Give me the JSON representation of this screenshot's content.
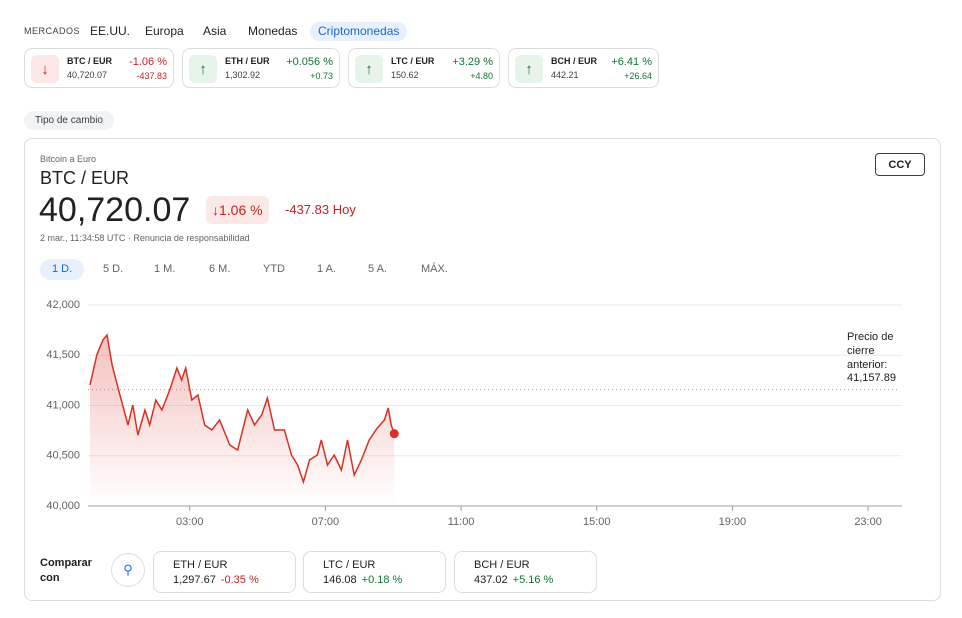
{
  "nav": {
    "label": "MERCADOS",
    "tabs": [
      "EE.UU.",
      "Europa",
      "Asia",
      "Monedas",
      "Criptomonedas"
    ],
    "active": 4
  },
  "tickers": [
    {
      "pair": "BTC / EUR",
      "price": "40,720.07",
      "change": "-1.06 %",
      "delta": "-437.83",
      "direction": "down"
    },
    {
      "pair": "ETH / EUR",
      "price": "1,302.92",
      "change": "+0.056 %",
      "delta": "+0.73",
      "direction": "up"
    },
    {
      "pair": "LTC / EUR",
      "price": "150.62",
      "change": "+3.29 %",
      "delta": "+4.80",
      "direction": "up"
    },
    {
      "pair": "BCH / EUR",
      "price": "442.21",
      "change": "+6.41 %",
      "delta": "+26.64",
      "direction": "up"
    }
  ],
  "chip": "Tipo de cambio",
  "card": {
    "subtitle": "Bitcoin a Euro",
    "title": "BTC / EUR",
    "price": "40,720.07",
    "change": "1.06 %",
    "delta": "-437.83 Hoy",
    "timestamp": "2 mar., 11:34:58 UTC · Renuncia de responsabilidad",
    "button": "CCY",
    "ranges": [
      "1 D.",
      "5 D.",
      "1 M.",
      "6 M.",
      "YTD",
      "1 A.",
      "5 A.",
      "MÁX."
    ],
    "active_range": 0
  },
  "chart_data": {
    "type": "line",
    "x": [
      0.06,
      0.26,
      0.44,
      0.56,
      0.71,
      0.94,
      1.18,
      1.32,
      1.47,
      1.68,
      1.82,
      2.0,
      2.18,
      2.41,
      2.62,
      2.76,
      2.88,
      3.06,
      3.24,
      3.44,
      3.65,
      3.88,
      4.18,
      4.41,
      4.71,
      4.91,
      5.12,
      5.29,
      5.5,
      5.79,
      6.0,
      6.18,
      6.35,
      6.53,
      6.76,
      6.88,
      7.06,
      7.26,
      7.47,
      7.65,
      7.85,
      8.06,
      8.29,
      8.53,
      8.74,
      8.85,
      8.94,
      9.03
    ],
    "series": [
      {
        "color": "#d93025",
        "values": [
          41204,
          41502,
          41652,
          41701,
          41403,
          41104,
          40806,
          41005,
          40706,
          40955,
          40806,
          41055,
          40955,
          41154,
          41373,
          41254,
          41373,
          41055,
          41104,
          40806,
          40756,
          40856,
          40607,
          40557,
          40955,
          40806,
          40905,
          41075,
          40756,
          40756,
          40507,
          40408,
          40239,
          40458,
          40507,
          40657,
          40408,
          40507,
          40358,
          40657,
          40308,
          40458,
          40657,
          40776,
          40856,
          40975,
          40806,
          40720.07
        ]
      }
    ],
    "xlim": [
      0,
      24
    ],
    "xticks": [
      {
        "value": 3,
        "label": "03:00"
      },
      {
        "value": 7,
        "label": "07:00"
      },
      {
        "value": 11,
        "label": "11:00"
      },
      {
        "value": 15,
        "label": "15:00"
      },
      {
        "value": 19,
        "label": "19:00"
      },
      {
        "value": 23,
        "label": "23:00"
      }
    ],
    "ylim": [
      40000,
      42000
    ],
    "yticks": [
      {
        "value": 40000,
        "label": "40,000"
      },
      {
        "value": 40500,
        "label": "40,500"
      },
      {
        "value": 41000,
        "label": "41,000"
      },
      {
        "value": 41500,
        "label": "41,500"
      },
      {
        "value": 42000,
        "label": "42,000"
      }
    ],
    "grid": true,
    "reference_line": {
      "text": "Precio de cierre anterior:",
      "value": 41157.89,
      "label": "41,157.89"
    }
  },
  "compare": {
    "label": "Comparar con",
    "items": [
      {
        "pair": "ETH / EUR",
        "price": "1,297.67",
        "change": "-0.35 %",
        "direction": "down"
      },
      {
        "pair": "LTC / EUR",
        "price": "146.08",
        "change": "+0.18 %",
        "direction": "up"
      },
      {
        "pair": "BCH / EUR",
        "price": "437.02",
        "change": "+5.16 %",
        "direction": "up"
      }
    ]
  }
}
